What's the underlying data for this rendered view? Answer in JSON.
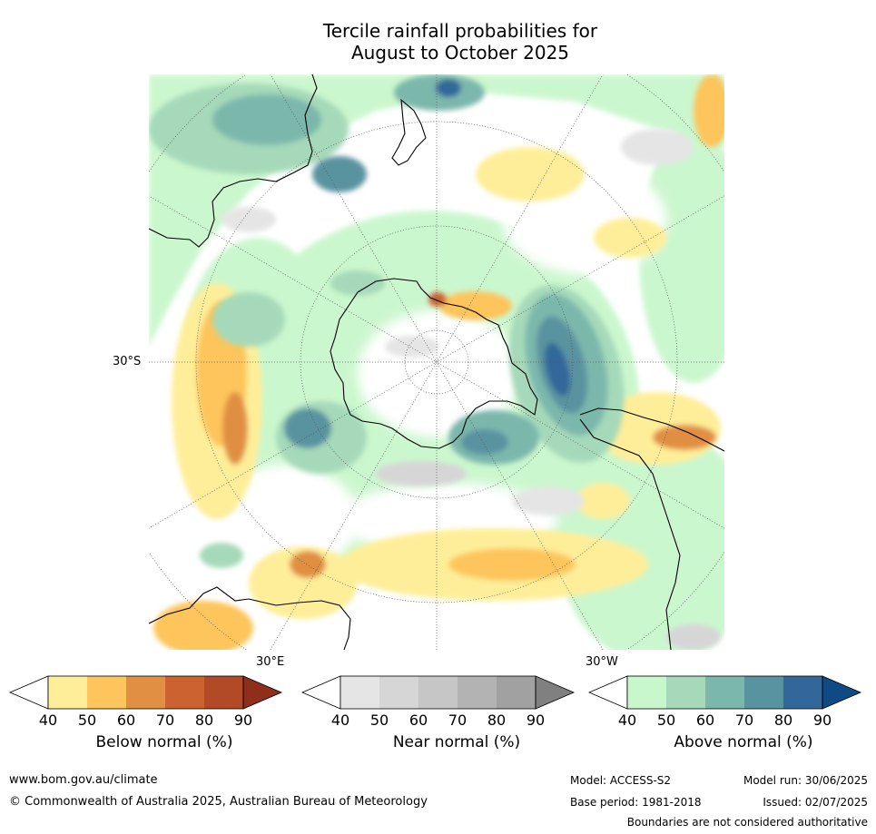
{
  "title_line1": "Tercile rainfall probabilities for",
  "title_line2": "August to October 2025",
  "map": {
    "lat_label": "30°S",
    "lon_label_east": "30°E",
    "lon_label_west": "30°W"
  },
  "colorbars": [
    {
      "name": "below-normal",
      "label": "Below normal (%)",
      "ticks": [
        "40",
        "50",
        "60",
        "70",
        "80",
        "90"
      ],
      "colors": [
        "#ffee99",
        "#fdc55c",
        "#e08f43",
        "#cc6230",
        "#b24a27",
        "#8f2f19"
      ]
    },
    {
      "name": "near-normal",
      "label": "Near normal (%)",
      "ticks": [
        "40",
        "50",
        "60",
        "70",
        "80",
        "90"
      ],
      "colors": [
        "#e5e5e5",
        "#d6d6d6",
        "#c6c6c6",
        "#b3b3b3",
        "#a1a1a1",
        "#808080"
      ]
    },
    {
      "name": "above-normal",
      "label": "Above normal (%)",
      "ticks": [
        "40",
        "50",
        "60",
        "70",
        "80",
        "90"
      ],
      "colors": [
        "#c9f7cc",
        "#a5d9b9",
        "#7cb7ac",
        "#5a93a0",
        "#33679a",
        "#104a85"
      ]
    }
  ],
  "footer": {
    "website": "www.bom.gov.au/climate",
    "copyright": "© Commonwealth of Australia 2025, Australian Bureau of Meteorology",
    "model": "Model: ACCESS-S2",
    "base_period": "Base period: 1981-2018",
    "model_run": "Model run: 30/06/2025",
    "issued": "Issued: 02/07/2025",
    "disclaimer": "Boundaries are not considered authoritative"
  }
}
